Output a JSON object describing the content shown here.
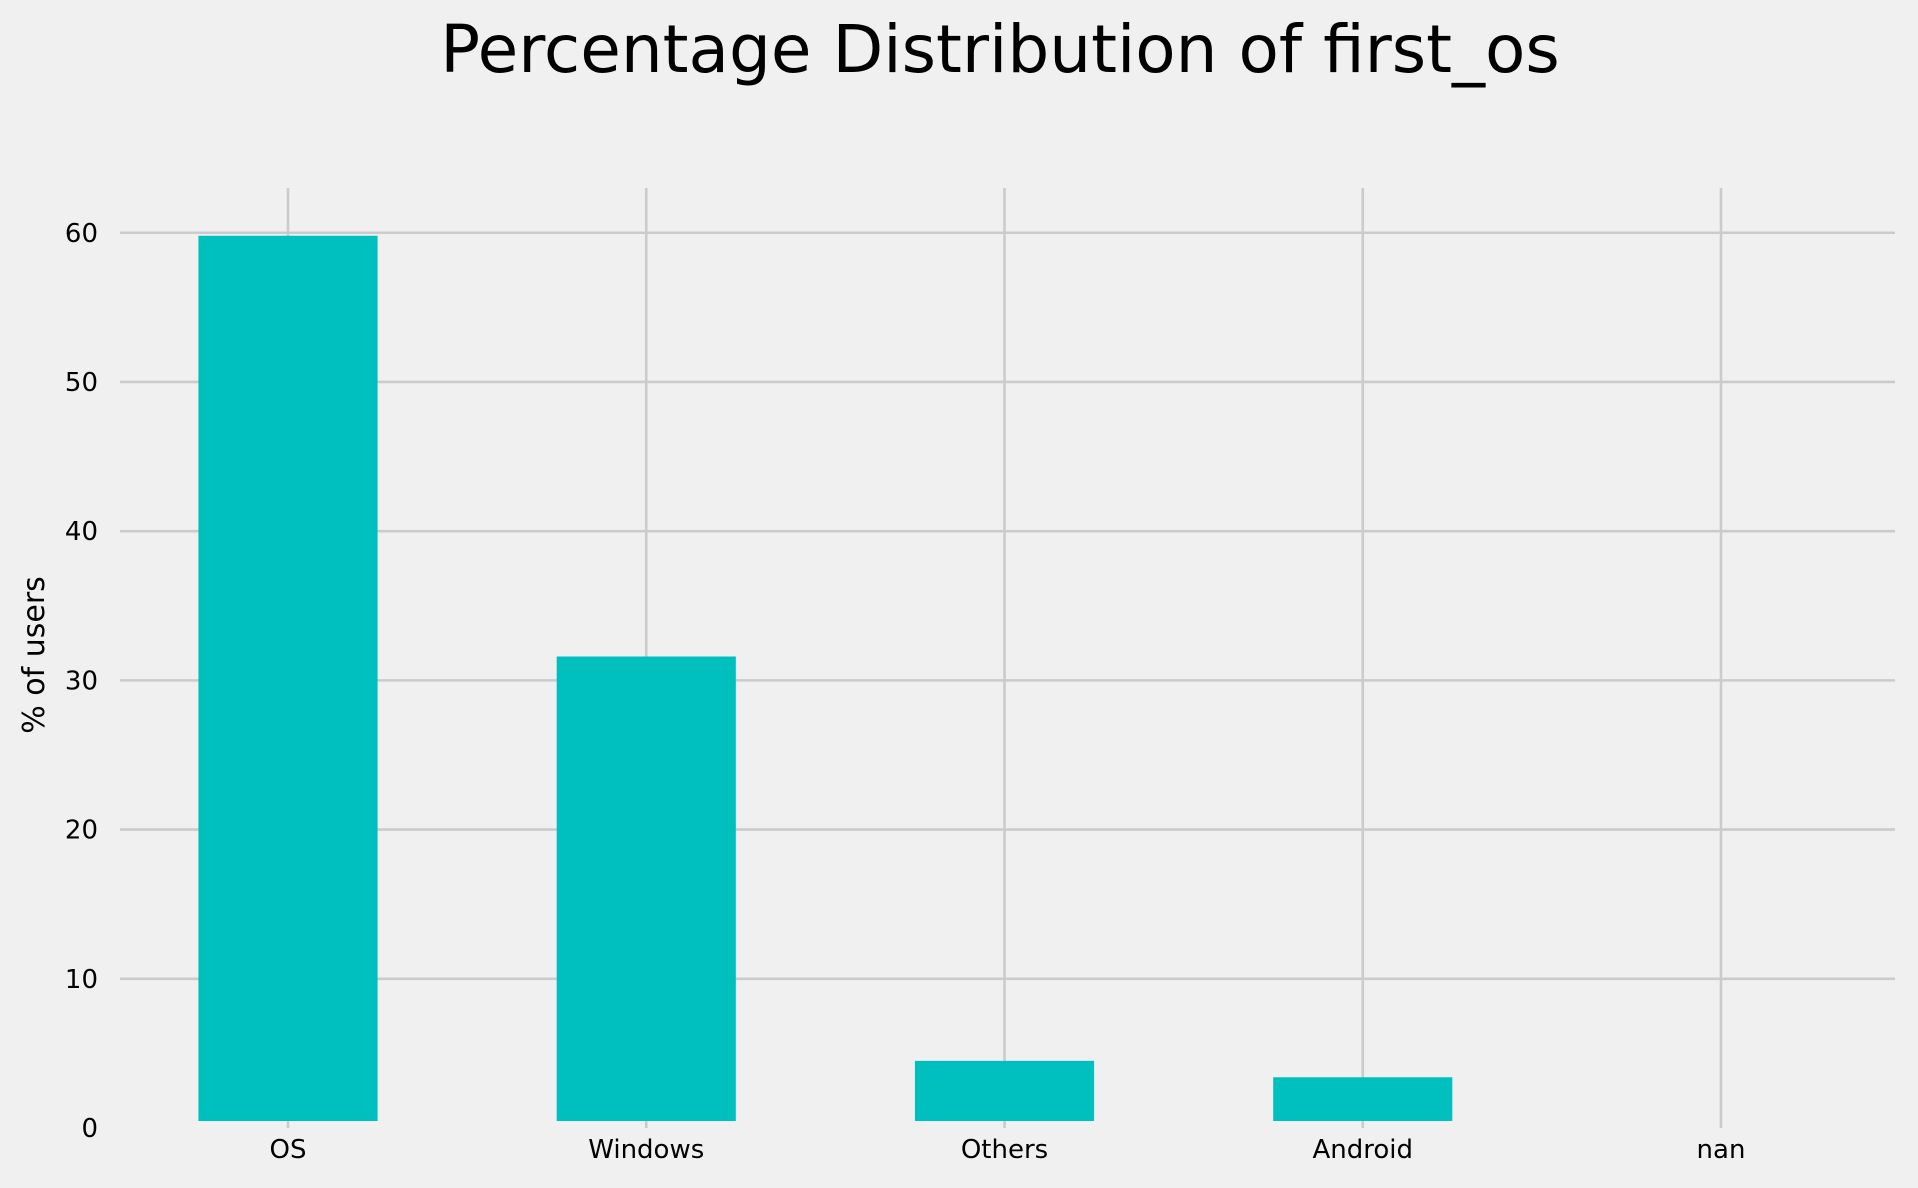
{
  "chart_data": {
    "type": "bar",
    "title": "Percentage Distribution of first_os",
    "xlabel": "",
    "ylabel": "% of users",
    "categories": [
      "OS",
      "Windows",
      "Others",
      "Android",
      "nan"
    ],
    "values": [
      59.8,
      31.6,
      4.5,
      3.4,
      0
    ],
    "y_ticks": [
      0,
      10,
      20,
      30,
      40,
      50,
      60
    ],
    "ylim": [
      0,
      63
    ],
    "grid": true,
    "bar_color": "#00bfbf",
    "background_color": "#f0f0f0",
    "grid_color": "#cbcbcb"
  }
}
